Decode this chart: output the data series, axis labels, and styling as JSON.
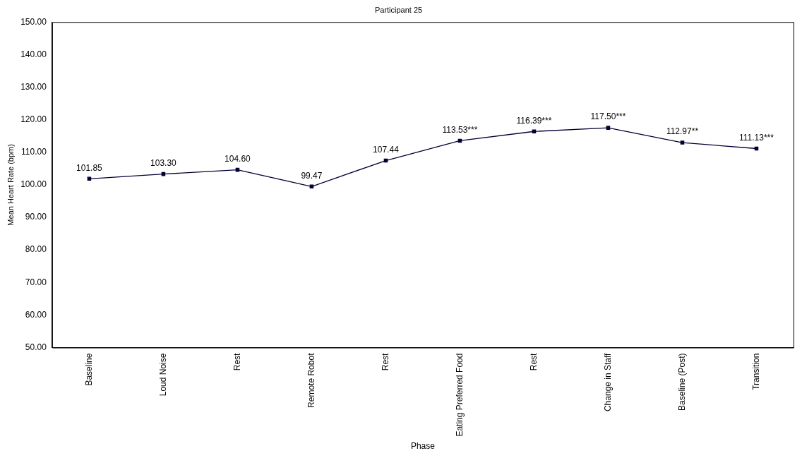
{
  "chart_data": {
    "type": "line",
    "title": "Participant 25",
    "xlabel": "Phase",
    "ylabel": "Mean Heart Rate (bpm)",
    "categories": [
      "Baseline",
      "Loud Noise",
      "Rest",
      "Remote Robot",
      "Rest",
      "Eating Preferred Food",
      "Rest",
      "Change in Staff",
      "Baseline (Post)",
      "Transition"
    ],
    "series": [
      {
        "color": "#000033",
        "values": [
          101.85,
          103.3,
          104.6,
          99.47,
          107.44,
          113.53,
          116.39,
          117.5,
          112.97,
          111.13
        ],
        "value_labels": [
          "101.85",
          "103.30",
          "104.60",
          "99.47",
          "107.44",
          "113.53***",
          "116.39***",
          "117.50***",
          "112.97**",
          "111.13***"
        ]
      }
    ],
    "ylim": [
      50,
      150
    ],
    "yticks": [
      {
        "value": 50,
        "label": "50.00"
      },
      {
        "value": 60,
        "label": "60.00"
      },
      {
        "value": 70,
        "label": "70.00"
      },
      {
        "value": 80,
        "label": "80.00"
      },
      {
        "value": 90,
        "label": "90.00"
      },
      {
        "value": 100,
        "label": "100.00"
      },
      {
        "value": 110,
        "label": "110.00"
      },
      {
        "value": 120,
        "label": "120.00"
      },
      {
        "value": 130,
        "label": "130.00"
      },
      {
        "value": 140,
        "label": "140.00"
      },
      {
        "value": 150,
        "label": "150.00"
      }
    ],
    "grid": false,
    "legend": false,
    "marker": "square",
    "line_style": "solid"
  }
}
